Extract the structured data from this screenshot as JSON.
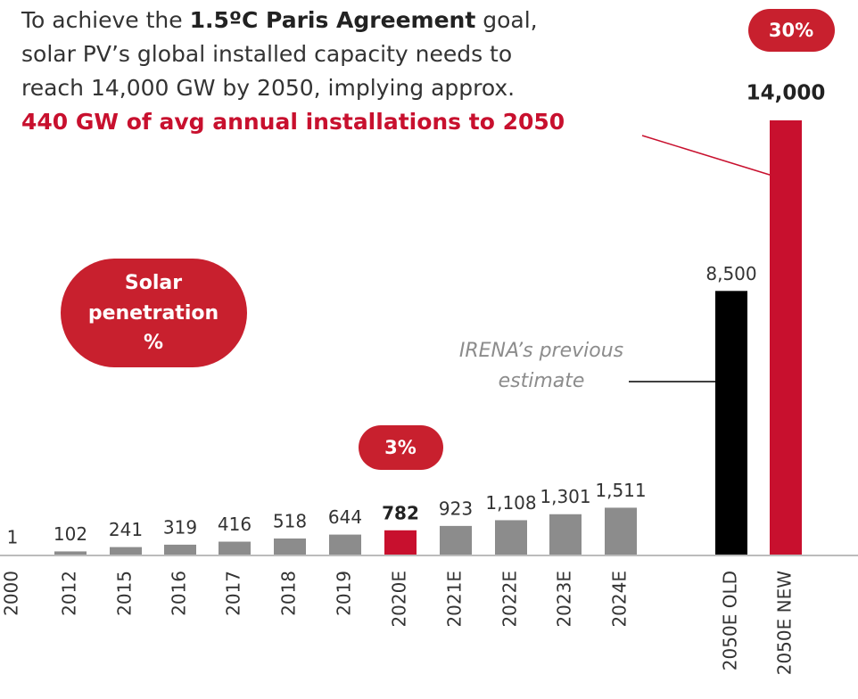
{
  "chart_data": {
    "type": "bar",
    "headline": [
      [
        "To achieve the ",
        "1.5ºC Paris Agreement",
        " goal,"
      ],
      [
        "solar PV’s global installed capacity needs to"
      ],
      [
        "reach 14,000 GW by 2050, implying approx."
      ],
      [
        "440 GW of avg annual installations to 2050"
      ]
    ],
    "categories": [
      "2000",
      "2012",
      "2015",
      "2016",
      "2017",
      "2018",
      "2019",
      "2020E",
      "2021E",
      "2022E",
      "2023E",
      "2024E",
      "2050E OLD",
      "2050E NEW"
    ],
    "values": [
      1,
      102,
      241,
      319,
      416,
      518,
      644,
      782,
      923,
      1108,
      1301,
      1511,
      8500,
      14000
    ],
    "value_labels": [
      "1",
      "102",
      "241",
      "319",
      "416",
      "518",
      "644",
      "782",
      "923",
      "1,108",
      "1,301",
      "1,511",
      "8,500",
      "14,000"
    ],
    "colors": [
      "#8c8c8c",
      "#8c8c8c",
      "#8c8c8c",
      "#8c8c8c",
      "#8c8c8c",
      "#8c8c8c",
      "#8c8c8c",
      "#c8102e",
      "#8c8c8c",
      "#8c8c8c",
      "#8c8c8c",
      "#8c8c8c",
      "#000000",
      "#c8102e"
    ],
    "badges": {
      "penetration": [
        "Solar",
        "penetration",
        "%"
      ],
      "badge_2020": "3%",
      "badge_2050": "30%"
    },
    "annotation": [
      "IRENA’s previous",
      "estimate"
    ]
  }
}
